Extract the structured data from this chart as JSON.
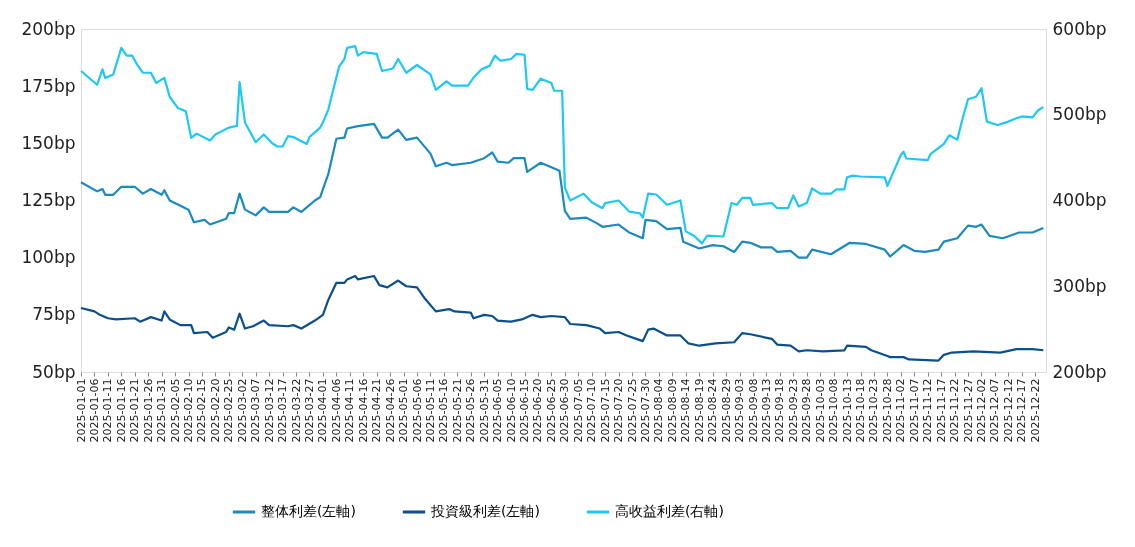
{
  "chart_data": {
    "type": "line",
    "xlim": [
      "2025-01-01",
      "2025-12-26"
    ],
    "xticks": [
      "2025-01-01",
      "2025-01-06",
      "2025-01-11",
      "2025-01-16",
      "2025-01-21",
      "2025-01-26",
      "2025-01-31",
      "2025-02-05",
      "2025-02-10",
      "2025-02-15",
      "2025-02-20",
      "2025-02-25",
      "2025-03-02",
      "2025-03-07",
      "2025-03-12",
      "2025-03-17",
      "2025-03-22",
      "2025-03-27",
      "2025-04-01",
      "2025-04-06",
      "2025-04-11",
      "2025-04-16",
      "2025-04-21",
      "2025-04-26",
      "2025-05-01",
      "2025-05-06",
      "2025-05-11",
      "2025-05-16",
      "2025-05-21",
      "2025-05-26",
      "2025-05-31",
      "2025-06-05",
      "2025-06-10",
      "2025-06-15",
      "2025-06-20",
      "2025-06-25",
      "2025-06-30",
      "2025-07-05",
      "2025-07-10",
      "2025-07-15",
      "2025-07-20",
      "2025-07-25",
      "2025-07-30",
      "2025-08-04",
      "2025-08-09",
      "2025-08-14",
      "2025-08-19",
      "2025-08-24",
      "2025-08-29",
      "2025-09-03",
      "2025-09-08",
      "2025-09-13",
      "2025-09-18",
      "2025-09-23",
      "2025-09-28",
      "2025-10-03",
      "2025-10-08",
      "2025-10-13",
      "2025-10-18",
      "2025-10-23",
      "2025-10-28",
      "2025-11-02",
      "2025-11-07",
      "2025-11-12",
      "2025-11-17",
      "2025-11-22",
      "2025-11-27",
      "2025-12-02",
      "2025-12-07",
      "2025-12-12",
      "2025-12-17",
      "2025-12-22"
    ],
    "ylim": [
      50,
      200
    ],
    "yticks": [
      {
        "value": 50,
        "label": "50bp"
      },
      {
        "value": 75,
        "label": "75bp"
      },
      {
        "value": 100,
        "label": "100bp"
      },
      {
        "value": 125,
        "label": "125bp"
      },
      {
        "value": 150,
        "label": "150bp"
      },
      {
        "value": 175,
        "label": "175bp"
      },
      {
        "value": 200,
        "label": "200bp"
      }
    ],
    "y2lim": [
      200,
      600
    ],
    "y2ticks": [
      {
        "value": 200,
        "label": "200bp"
      },
      {
        "value": 300,
        "label": "300bp"
      },
      {
        "value": 400,
        "label": "400bp"
      },
      {
        "value": 500,
        "label": "500bp"
      },
      {
        "value": 600,
        "label": "600bp"
      }
    ],
    "legend": "bottom",
    "grid": false,
    "marker": "none",
    "line_style": "solid",
    "series": [
      {
        "name": "整体利差(左軸)",
        "color": "#1a8ac0",
        "axis": "y",
        "x": [
          "2025-01-01",
          "2025-01-07",
          "2025-01-09",
          "2025-01-10",
          "2025-01-13",
          "2025-01-16",
          "2025-01-21",
          "2025-01-24",
          "2025-01-27",
          "2025-01-31",
          "2025-02-01",
          "2025-02-03",
          "2025-02-10",
          "2025-02-12",
          "2025-02-16",
          "2025-02-18",
          "2025-02-24",
          "2025-02-25",
          "2025-02-27",
          "2025-03-01",
          "2025-03-03",
          "2025-03-07",
          "2025-03-10",
          "2025-03-12",
          "2025-03-19",
          "2025-03-21",
          "2025-03-24",
          "2025-03-29",
          "2025-03-31",
          "2025-04-01",
          "2025-04-03",
          "2025-04-06",
          "2025-04-09",
          "2025-04-10",
          "2025-04-14",
          "2025-04-20",
          "2025-04-23",
          "2025-04-25",
          "2025-04-29",
          "2025-05-02",
          "2025-05-06",
          "2025-05-11",
          "2025-05-13",
          "2025-05-17",
          "2025-05-19",
          "2025-05-26",
          "2025-05-31",
          "2025-06-03",
          "2025-06-05",
          "2025-06-09",
          "2025-06-11",
          "2025-06-15",
          "2025-06-16",
          "2025-06-21",
          "2025-06-25",
          "2025-06-28",
          "2025-06-30",
          "2025-07-02",
          "2025-07-08",
          "2025-07-12",
          "2025-07-14",
          "2025-07-20",
          "2025-07-24",
          "2025-07-29",
          "2025-07-30",
          "2025-08-03",
          "2025-08-07",
          "2025-08-12",
          "2025-08-13",
          "2025-08-19",
          "2025-08-24",
          "2025-08-28",
          "2025-09-01",
          "2025-09-04",
          "2025-09-07",
          "2025-09-11",
          "2025-09-15",
          "2025-09-17",
          "2025-09-22",
          "2025-09-25",
          "2025-09-28",
          "2025-09-30",
          "2025-10-07",
          "2025-10-14",
          "2025-10-20",
          "2025-10-27",
          "2025-10-29",
          "2025-11-03",
          "2025-11-07",
          "2025-11-11",
          "2025-11-16",
          "2025-11-18",
          "2025-11-23",
          "2025-11-27",
          "2025-11-30",
          "2025-12-02",
          "2025-12-05",
          "2025-12-10",
          "2025-12-16",
          "2025-12-21",
          "2025-12-25"
        ],
        "values": [
          133,
          129,
          130,
          127.5,
          127.5,
          131,
          131,
          128,
          130,
          127.5,
          129.5,
          125,
          121,
          115.5,
          116.5,
          114.5,
          117,
          119.5,
          119.5,
          128,
          121,
          118.5,
          122,
          120,
          120,
          122,
          120,
          125,
          126.5,
          130,
          136.5,
          152,
          152.5,
          156.5,
          157.5,
          158.5,
          152.5,
          152.5,
          156,
          151.5,
          152.5,
          145.5,
          140,
          141.5,
          140.5,
          141.5,
          143.5,
          146,
          142,
          141.5,
          143.5,
          143.5,
          137.5,
          141.5,
          139.5,
          138,
          120.5,
          117,
          117.5,
          115,
          113.5,
          114.5,
          111,
          108.5,
          116.5,
          116,
          112.5,
          113,
          107,
          104,
          105.5,
          105,
          102.5,
          107,
          106.5,
          104.5,
          104.5,
          102.5,
          103,
          100,
          100,
          103.5,
          101.5,
          106.5,
          106,
          103.5,
          100.5,
          105.5,
          103,
          102.5,
          103.5,
          107,
          108.5,
          114,
          113.5,
          114.5,
          109.5,
          108.5,
          111,
          111,
          113
        ]
      },
      {
        "name": "投資級利差(左軸)",
        "color": "#0b4f8c",
        "axis": "y",
        "x": [
          "2025-01-01",
          "2025-01-06",
          "2025-01-08",
          "2025-01-11",
          "2025-01-14",
          "2025-01-21",
          "2025-01-23",
          "2025-01-27",
          "2025-01-31",
          "2025-02-01",
          "2025-02-03",
          "2025-02-07",
          "2025-02-11",
          "2025-02-12",
          "2025-02-17",
          "2025-02-19",
          "2025-02-24",
          "2025-02-25",
          "2025-02-27",
          "2025-03-01",
          "2025-03-03",
          "2025-03-06",
          "2025-03-10",
          "2025-03-12",
          "2025-03-19",
          "2025-03-21",
          "2025-03-24",
          "2025-03-29",
          "2025-04-01",
          "2025-04-03",
          "2025-04-06",
          "2025-04-09",
          "2025-04-10",
          "2025-04-13",
          "2025-04-14",
          "2025-04-20",
          "2025-04-22",
          "2025-04-25",
          "2025-04-29",
          "2025-05-02",
          "2025-05-06",
          "2025-05-09",
          "2025-05-13",
          "2025-05-18",
          "2025-05-20",
          "2025-05-26",
          "2025-05-27",
          "2025-05-31",
          "2025-06-03",
          "2025-06-05",
          "2025-06-10",
          "2025-06-14",
          "2025-06-18",
          "2025-06-21",
          "2025-06-25",
          "2025-06-30",
          "2025-07-02",
          "2025-07-08",
          "2025-07-13",
          "2025-07-15",
          "2025-07-20",
          "2025-07-23",
          "2025-07-29",
          "2025-07-31",
          "2025-08-02",
          "2025-08-07",
          "2025-08-12",
          "2025-08-15",
          "2025-08-19",
          "2025-08-25",
          "2025-09-01",
          "2025-09-04",
          "2025-09-07",
          "2025-09-15",
          "2025-09-17",
          "2025-09-22",
          "2025-09-25",
          "2025-09-28",
          "2025-10-04",
          "2025-10-12",
          "2025-10-13",
          "2025-10-20",
          "2025-10-22",
          "2025-10-28",
          "2025-10-29",
          "2025-11-03",
          "2025-11-05",
          "2025-11-16",
          "2025-11-18",
          "2025-11-21",
          "2025-11-29",
          "2025-12-09",
          "2025-12-15",
          "2025-12-21",
          "2025-12-25"
        ],
        "values": [
          78,
          76.5,
          75,
          73.5,
          73,
          73.5,
          72,
          74,
          72.5,
          76.5,
          73,
          70.5,
          70.5,
          67,
          67.5,
          65,
          67.5,
          69.5,
          68.5,
          75.5,
          69,
          70,
          72.5,
          70.5,
          70,
          70.5,
          69,
          72.5,
          75,
          81.5,
          89,
          89,
          90.5,
          92,
          90.5,
          92,
          88,
          87,
          90,
          87.5,
          87,
          82,
          76.5,
          77.5,
          76.5,
          76,
          73.5,
          75,
          74.5,
          72.5,
          72,
          73,
          75,
          74,
          74.5,
          74,
          71,
          70.5,
          69,
          67,
          67.5,
          66,
          63.5,
          68.5,
          69,
          66,
          66,
          62.5,
          61.5,
          62.5,
          63,
          67,
          66.5,
          64.5,
          62,
          61.5,
          59,
          59.5,
          59,
          59.5,
          61.5,
          61,
          59.5,
          57,
          56.5,
          56.5,
          55.5,
          55,
          57.5,
          58.5,
          59,
          58.5,
          60,
          60,
          59.5
        ]
      },
      {
        "name": "高收益利差(右軸)",
        "color": "#1ec8f5",
        "axis": "y2",
        "x": [
          "2025-01-01",
          "2025-01-07",
          "2025-01-09",
          "2025-01-10",
          "2025-01-13",
          "2025-01-16",
          "2025-01-18",
          "2025-01-20",
          "2025-01-22",
          "2025-01-24",
          "2025-01-27",
          "2025-01-29",
          "2025-02-01",
          "2025-02-03",
          "2025-02-06",
          "2025-02-09",
          "2025-02-11",
          "2025-02-13",
          "2025-02-18",
          "2025-02-20",
          "2025-02-25",
          "2025-02-28",
          "2025-03-01",
          "2025-03-03",
          "2025-03-07",
          "2025-03-10",
          "2025-03-13",
          "2025-03-15",
          "2025-03-17",
          "2025-03-19",
          "2025-03-21",
          "2025-03-24",
          "2025-03-26",
          "2025-03-27",
          "2025-03-31",
          "2025-04-01",
          "2025-04-03",
          "2025-04-07",
          "2025-04-09",
          "2025-04-10",
          "2025-04-13",
          "2025-04-14",
          "2025-04-16",
          "2025-04-21",
          "2025-04-23",
          "2025-04-27",
          "2025-04-29",
          "2025-05-02",
          "2025-05-06",
          "2025-05-11",
          "2025-05-13",
          "2025-05-17",
          "2025-05-19",
          "2025-05-25",
          "2025-05-27",
          "2025-05-30",
          "2025-06-02",
          "2025-06-04",
          "2025-06-06",
          "2025-06-10",
          "2025-06-12",
          "2025-06-15",
          "2025-06-16",
          "2025-06-18",
          "2025-06-21",
          "2025-06-25",
          "2025-06-26",
          "2025-06-29",
          "2025-06-30",
          "2025-07-02",
          "2025-07-07",
          "2025-07-10",
          "2025-07-14",
          "2025-07-15",
          "2025-07-20",
          "2025-07-24",
          "2025-07-28",
          "2025-07-29",
          "2025-07-31",
          "2025-08-03",
          "2025-08-07",
          "2025-08-12",
          "2025-08-14",
          "2025-08-17",
          "2025-08-20",
          "2025-08-22",
          "2025-08-28",
          "2025-08-31",
          "2025-09-02",
          "2025-09-04",
          "2025-09-07",
          "2025-09-08",
          "2025-09-15",
          "2025-09-17",
          "2025-09-21",
          "2025-09-23",
          "2025-09-25",
          "2025-09-28",
          "2025-09-30",
          "2025-10-03",
          "2025-10-07",
          "2025-10-09",
          "2025-10-12",
          "2025-10-13",
          "2025-10-15",
          "2025-10-18",
          "2025-10-27",
          "2025-10-28",
          "2025-11-02",
          "2025-11-03",
          "2025-11-04",
          "2025-11-12",
          "2025-11-13",
          "2025-11-18",
          "2025-11-20",
          "2025-11-23",
          "2025-11-25",
          "2025-11-27",
          "2025-11-30",
          "2025-12-02",
          "2025-12-04",
          "2025-12-08",
          "2025-12-12",
          "2025-12-15",
          "2025-12-17",
          "2025-12-21",
          "2025-12-23",
          "2025-12-25"
        ],
        "values": [
          551,
          535,
          553,
          543,
          547,
          578,
          569,
          569,
          558,
          549,
          549,
          537,
          543,
          521,
          508,
          504,
          473,
          478,
          470,
          477,
          485,
          487,
          538,
          491,
          468,
          477,
          467,
          463,
          463,
          475,
          474,
          469,
          466,
          474,
          485,
          491,
          506,
          556,
          565,
          578,
          580,
          569,
          573,
          571,
          551,
          554,
          565,
          549,
          558,
          547,
          529,
          539,
          534,
          534,
          543,
          553,
          557,
          569,
          563,
          565,
          571,
          570,
          530,
          529,
          542,
          537,
          528,
          528,
          415,
          400,
          408,
          398,
          391,
          397,
          400,
          387,
          385,
          380,
          408,
          407,
          395,
          400,
          364,
          359,
          350,
          359,
          358,
          397,
          395,
          403,
          403,
          395,
          397,
          391,
          391,
          406,
          393,
          397,
          414,
          408,
          408,
          413,
          413,
          427,
          429,
          428,
          427,
          417,
          453,
          457,
          449,
          447,
          454,
          466,
          476,
          471,
          496,
          518,
          521,
          531,
          492,
          488,
          492,
          496,
          498,
          497,
          505,
          509
        ]
      }
    ]
  }
}
